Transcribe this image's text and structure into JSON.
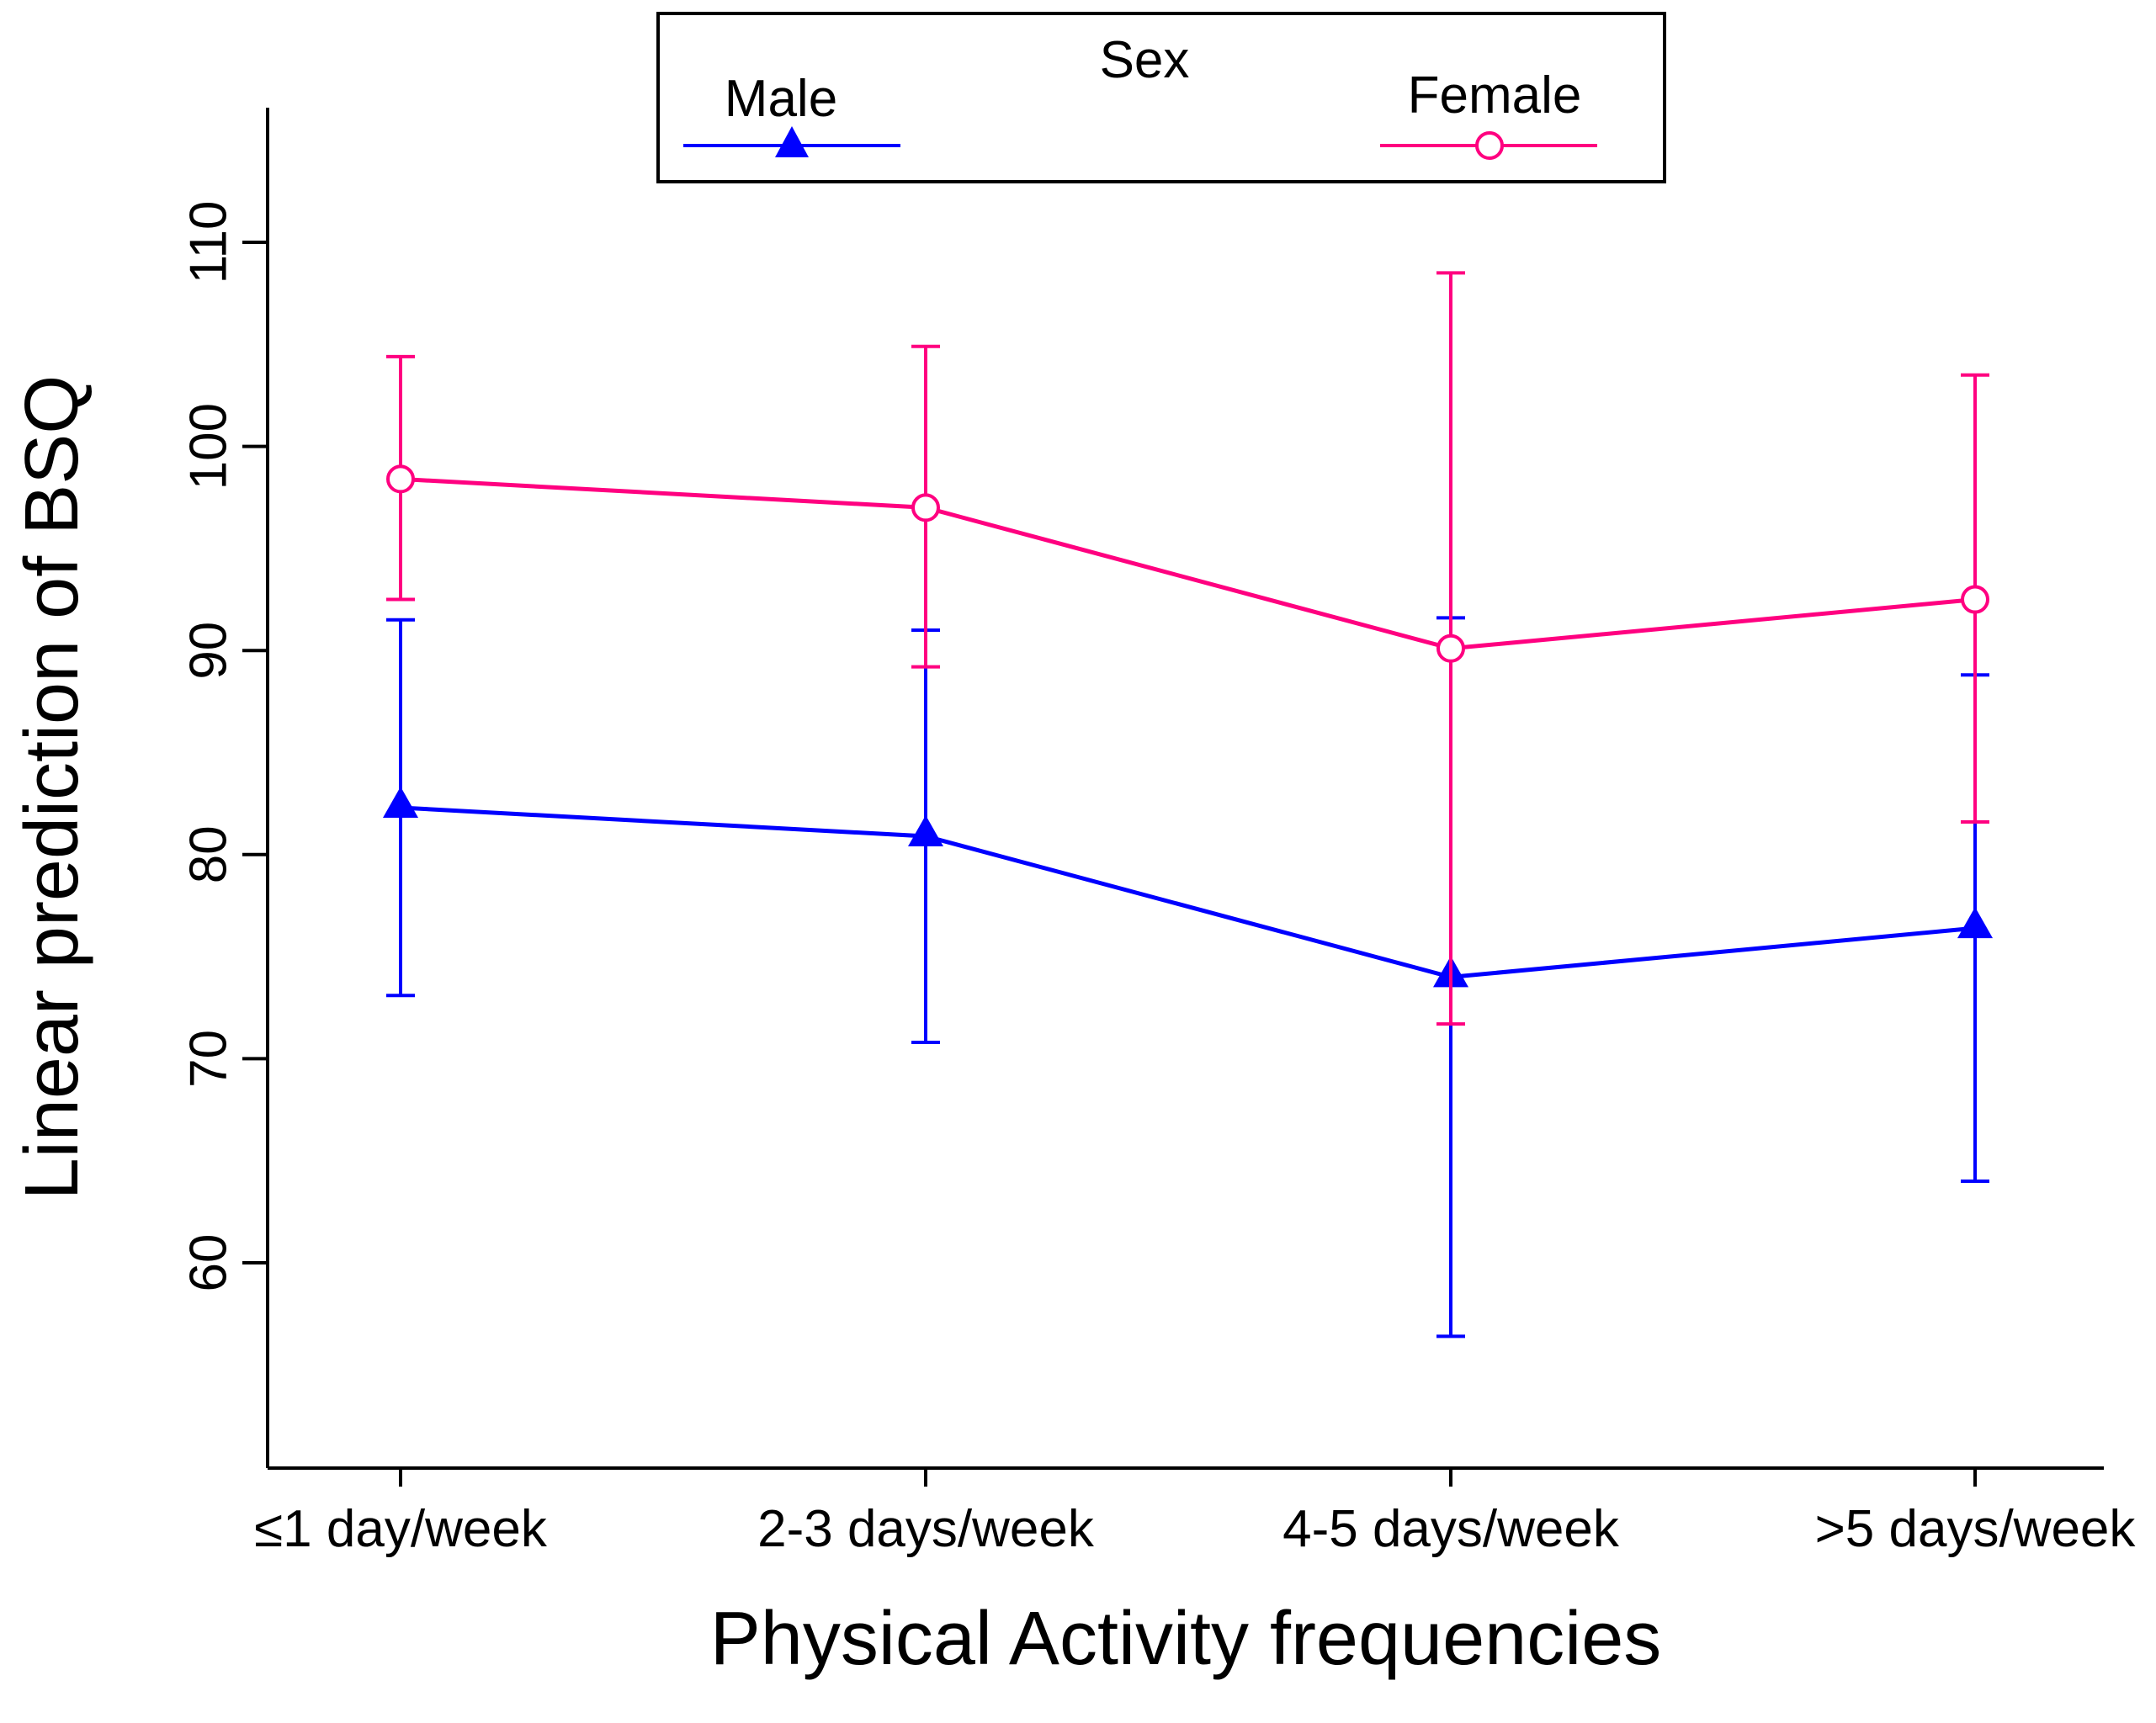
{
  "chart_data": {
    "type": "line",
    "xlabel": "Physical Activity frequencies",
    "ylabel": "Linear prediction of BSQ",
    "categories": [
      "≤1 day/week",
      "2-3 days/week",
      "4-5 days/week",
      ">5 days/week"
    ],
    "yticks": [
      60,
      70,
      80,
      90,
      100,
      110
    ],
    "ytick_labels": [
      "60",
      "70",
      "80",
      "90",
      "100",
      "110"
    ],
    "ylim": [
      50,
      116
    ],
    "error_bars": "confidence intervals",
    "legend": {
      "title": "Sex",
      "position": "top-center"
    },
    "series": [
      {
        "name": "Male",
        "color": "#0000ff",
        "marker": "filled-triangle",
        "values": [
          82.3,
          80.9,
          74.0,
          76.4
        ],
        "lower": [
          73.1,
          70.8,
          56.4,
          64.0
        ],
        "upper": [
          91.5,
          91.0,
          91.6,
          88.8
        ]
      },
      {
        "name": "Female",
        "color": "#ff0080",
        "marker": "hollow-circle",
        "values": [
          98.4,
          97.0,
          90.1,
          92.5
        ],
        "lower": [
          92.5,
          89.2,
          71.7,
          81.6
        ],
        "upper": [
          104.4,
          104.9,
          108.5,
          103.5
        ]
      }
    ]
  }
}
